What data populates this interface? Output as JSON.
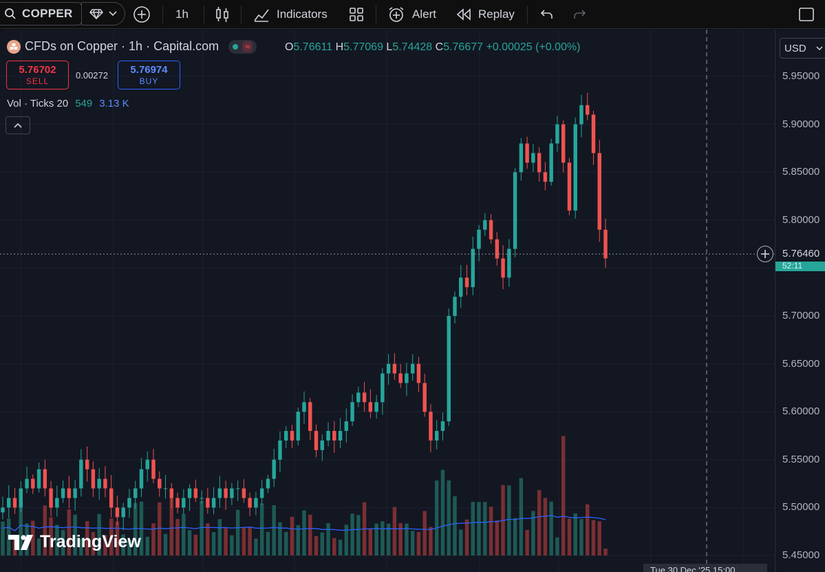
{
  "toolbar": {
    "symbol": "COPPER",
    "interval": "1h",
    "indicators_label": "Indicators",
    "alert_label": "Alert",
    "replay_label": "Replay"
  },
  "legend": {
    "title": "CFDs on Copper · 1h · Capital.com",
    "o_label": "O",
    "o_value": "5.76611",
    "h_label": "H",
    "h_value": "5.77069",
    "l_label": "L",
    "l_value": "5.74428",
    "c_label": "C",
    "c_value": "5.76677",
    "change": "+0.00025 (+0.00%)"
  },
  "trade": {
    "sell_price": "5.76702",
    "sell_label": "SELL",
    "spread": "0.00272",
    "buy_price": "5.76974",
    "buy_label": "BUY"
  },
  "volume_legend": {
    "label": "Vol · Ticks 20",
    "value": "549",
    "ma_value": "3.13 K"
  },
  "watermark": "TradingView",
  "price_scale": {
    "currency": "USD",
    "current_price": "5.76460",
    "countdown": "52:11",
    "ticks": [
      "5.95000",
      "5.90000",
      "5.85000",
      "5.80000",
      "5.75000",
      "5.70000",
      "5.65000",
      "5.60000",
      "5.55000",
      "5.50000",
      "5.45000"
    ]
  },
  "time_axis": {
    "crosshair_label": "Tue 30 Dec '25 15:00"
  },
  "colors": {
    "up": "#26a69a",
    "down": "#ef5350",
    "volume_ma": "#2962ff",
    "background": "#131722"
  },
  "chart_data": {
    "type": "candlestick",
    "title": "CFDs on Copper · 1h · Capital.com",
    "ylim": [
      5.45,
      5.95
    ],
    "candles_close": [
      5.5,
      5.51,
      5.5,
      5.52,
      5.53,
      5.52,
      5.54,
      5.52,
      5.5,
      5.51,
      5.52,
      5.51,
      5.52,
      5.55,
      5.54,
      5.52,
      5.53,
      5.52,
      5.5,
      5.49,
      5.5,
      5.51,
      5.52,
      5.54,
      5.55,
      5.53,
      5.52,
      5.52,
      5.51,
      5.5,
      5.51,
      5.52,
      5.51,
      5.51,
      5.5,
      5.51,
      5.52,
      5.51,
      5.52,
      5.52,
      5.51,
      5.5,
      5.51,
      5.52,
      5.53,
      5.55,
      5.57,
      5.58,
      5.57,
      5.6,
      5.61,
      5.58,
      5.56,
      5.57,
      5.58,
      5.57,
      5.58,
      5.59,
      5.61,
      5.62,
      5.61,
      5.6,
      5.61,
      5.64,
      5.65,
      5.64,
      5.63,
      5.64,
      5.65,
      5.63,
      5.6,
      5.57,
      5.58,
      5.59,
      5.7,
      5.72,
      5.74,
      5.73,
      5.77,
      5.79,
      5.8,
      5.78,
      5.76,
      5.74,
      5.77,
      5.85,
      5.88,
      5.86,
      5.87,
      5.85,
      5.84,
      5.88,
      5.9,
      5.86,
      5.81,
      5.9,
      5.92,
      5.91,
      5.87,
      5.79,
      5.76
    ],
    "volume_ma": "3.13 K",
    "volume_last": 549
  }
}
